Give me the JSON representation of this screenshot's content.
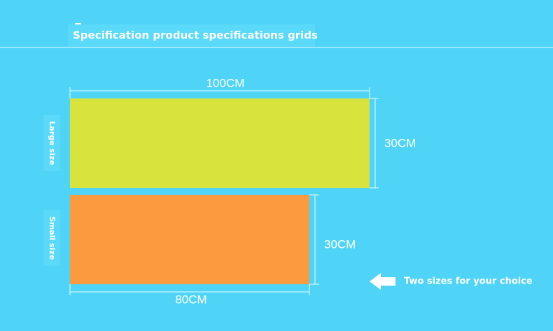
{
  "header": {
    "title": "Specification product specifications grids"
  },
  "large": {
    "label": "Large size",
    "width": "100CM",
    "height": "30CM"
  },
  "small": {
    "label": "Small size",
    "width": "80CM",
    "height": "30CM"
  },
  "note": "Two sizes for your choice"
}
